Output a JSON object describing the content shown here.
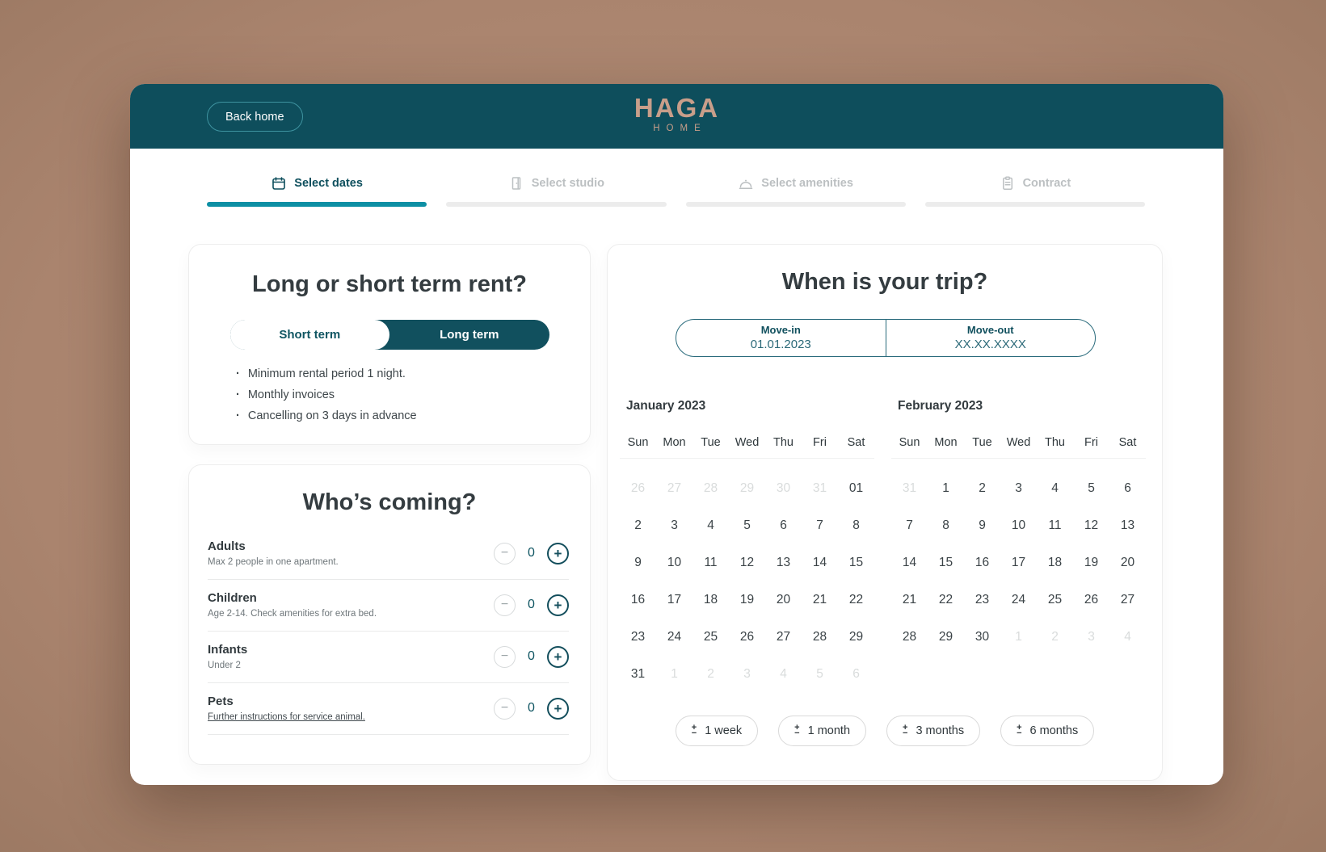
{
  "header": {
    "back_button": "Back home",
    "logo_title": "HAGA",
    "logo_subtitle": "HOME"
  },
  "steps": [
    {
      "label": "Select dates",
      "icon": "calendar-icon",
      "active": true
    },
    {
      "label": "Select studio",
      "icon": "door-icon",
      "active": false
    },
    {
      "label": "Select amenities",
      "icon": "cloche-icon",
      "active": false
    },
    {
      "label": "Contract",
      "icon": "clipboard-icon",
      "active": false
    }
  ],
  "rent_panel": {
    "title": "Long or short term rent?",
    "toggle_options": [
      "Short term",
      "Long term"
    ],
    "toggle_selected": "Short term",
    "bullets": [
      "Minimum rental period 1 night.",
      "Monthly invoices",
      "Cancelling on 3 days in advance"
    ]
  },
  "guests_panel": {
    "title": "Who’s coming?",
    "rows": [
      {
        "label": "Adults",
        "sublabel": "Max 2 people in one apartment.",
        "count": "0",
        "link": false
      },
      {
        "label": "Children",
        "sublabel": "Age 2-14. Check amenities for extra bed.",
        "count": "0",
        "link": false
      },
      {
        "label": "Infants",
        "sublabel": "Under 2",
        "count": "0",
        "link": false
      },
      {
        "label": "Pets",
        "sublabel": "Further instructions for service animal.",
        "count": "0",
        "link": true
      }
    ]
  },
  "trip_panel": {
    "title": "When is your trip?",
    "date_fields": [
      {
        "label": "Move-in",
        "value": "01.01.2023"
      },
      {
        "label": "Move-out",
        "value": "XX.XX.XXXX"
      }
    ],
    "weekdays": [
      "Sun",
      "Mon",
      "Tue",
      "Wed",
      "Thu",
      "Fri",
      "Sat"
    ],
    "months": [
      {
        "title": "January 2023",
        "days": [
          {
            "d": "26",
            "muted": true
          },
          {
            "d": "27",
            "muted": true
          },
          {
            "d": "28",
            "muted": true
          },
          {
            "d": "29",
            "muted": true
          },
          {
            "d": "30",
            "muted": true
          },
          {
            "d": "31",
            "muted": true
          },
          {
            "d": "01",
            "muted": false
          },
          {
            "d": "2",
            "muted": false
          },
          {
            "d": "3",
            "muted": false
          },
          {
            "d": "4",
            "muted": false
          },
          {
            "d": "5",
            "muted": false
          },
          {
            "d": "6",
            "muted": false
          },
          {
            "d": "7",
            "muted": false
          },
          {
            "d": "8",
            "muted": false
          },
          {
            "d": "9",
            "muted": false
          },
          {
            "d": "10",
            "muted": false
          },
          {
            "d": "11",
            "muted": false
          },
          {
            "d": "12",
            "muted": false
          },
          {
            "d": "13",
            "muted": false
          },
          {
            "d": "14",
            "muted": false
          },
          {
            "d": "15",
            "muted": false
          },
          {
            "d": "16",
            "muted": false
          },
          {
            "d": "17",
            "muted": false
          },
          {
            "d": "18",
            "muted": false
          },
          {
            "d": "19",
            "muted": false
          },
          {
            "d": "20",
            "muted": false
          },
          {
            "d": "21",
            "muted": false
          },
          {
            "d": "22",
            "muted": false
          },
          {
            "d": "23",
            "muted": false
          },
          {
            "d": "24",
            "muted": false
          },
          {
            "d": "25",
            "muted": false
          },
          {
            "d": "26",
            "muted": false
          },
          {
            "d": "27",
            "muted": false
          },
          {
            "d": "28",
            "muted": false
          },
          {
            "d": "29",
            "muted": false
          },
          {
            "d": "31",
            "muted": false
          },
          {
            "d": "1",
            "muted": true
          },
          {
            "d": "2",
            "muted": true
          },
          {
            "d": "3",
            "muted": true
          },
          {
            "d": "4",
            "muted": true
          },
          {
            "d": "5",
            "muted": true
          },
          {
            "d": "6",
            "muted": true
          }
        ]
      },
      {
        "title": "February 2023",
        "days": [
          {
            "d": "31",
            "muted": true
          },
          {
            "d": "1",
            "muted": false
          },
          {
            "d": "2",
            "muted": false
          },
          {
            "d": "3",
            "muted": false
          },
          {
            "d": "4",
            "muted": false
          },
          {
            "d": "5",
            "muted": false
          },
          {
            "d": "6",
            "muted": false
          },
          {
            "d": "7",
            "muted": false
          },
          {
            "d": "8",
            "muted": false
          },
          {
            "d": "9",
            "muted": false
          },
          {
            "d": "10",
            "muted": false
          },
          {
            "d": "11",
            "muted": false
          },
          {
            "d": "12",
            "muted": false
          },
          {
            "d": "13",
            "muted": false
          },
          {
            "d": "14",
            "muted": false
          },
          {
            "d": "15",
            "muted": false
          },
          {
            "d": "16",
            "muted": false
          },
          {
            "d": "17",
            "muted": false
          },
          {
            "d": "18",
            "muted": false
          },
          {
            "d": "19",
            "muted": false
          },
          {
            "d": "20",
            "muted": false
          },
          {
            "d": "21",
            "muted": false
          },
          {
            "d": "22",
            "muted": false
          },
          {
            "d": "23",
            "muted": false
          },
          {
            "d": "24",
            "muted": false
          },
          {
            "d": "25",
            "muted": false
          },
          {
            "d": "26",
            "muted": false
          },
          {
            "d": "27",
            "muted": false
          },
          {
            "d": "28",
            "muted": false
          },
          {
            "d": "29",
            "muted": false
          },
          {
            "d": "30",
            "muted": false
          },
          {
            "d": "1",
            "muted": true
          },
          {
            "d": "2",
            "muted": true
          },
          {
            "d": "3",
            "muted": true
          },
          {
            "d": "4",
            "muted": true
          }
        ]
      }
    ],
    "quick_icon": "plus-minus-icon",
    "quick_ranges": [
      "1 week",
      "1 month",
      "3 months",
      "6 months"
    ]
  },
  "colors": {
    "header_teal": "#0e4e5c",
    "accent_teal": "#0d8fa4",
    "logo_tan": "#c89e8a",
    "text_dark": "#343c40",
    "muted_day": "#d9dcdc"
  }
}
